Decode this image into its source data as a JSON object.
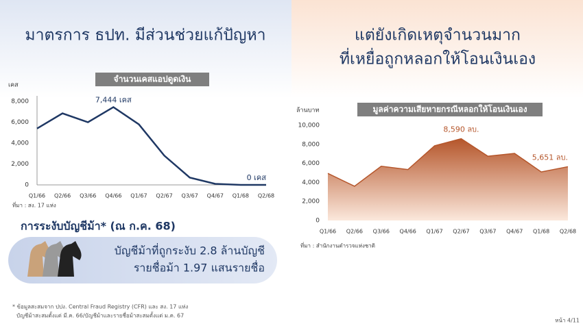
{
  "left_heading": "มาตรการ ธปท. มีส่วนช่วยแก้ปัญหา",
  "right_heading": [
    "แต่ยังเกิดเหตุจำนวนมาก",
    "ที่เหยื่อถูกหลอกให้โอนเงินเอง"
  ],
  "mule_box": {
    "title": "การระงับบัญชีม้า* (ณ ก.ค. 68)",
    "lines": [
      "บัญชีม้าที่ถูกระงับ  2.8 ล้านบัญชี",
      "รายชื่อม้า 1.97 แสนรายชื่อ"
    ]
  },
  "footnote": [
    "* ข้อมูลสะสมจาก ปปง. Central Fraud Registry (CFR) และ สง. 17 แห่ง",
    "บัญชีม้าสะสมตั้งแต่ มี.ค. 66/บัญชีม้าและรายชื่อม้าสะสมตั้งแต่ ม.ค. 67"
  ],
  "page_number": "หน้า 4/11",
  "chart_data": [
    {
      "type": "line",
      "title": "จำนวนเคสแอปดูดเงิน",
      "y_label": "เคส",
      "source": "ที่มา : สง. 17 แห่ง",
      "categories": [
        "Q1/66",
        "Q2/66",
        "Q3/66",
        "Q4/66",
        "Q1/67",
        "Q2/67",
        "Q3/67",
        "Q4/67",
        "Q1/68",
        "Q2/68"
      ],
      "values": [
        5400,
        6850,
        6000,
        7444,
        5800,
        2800,
        700,
        100,
        0,
        0
      ],
      "value_labels": [
        null,
        null,
        null,
        "7,444 เคส",
        null,
        null,
        null,
        null,
        null,
        "0 เคส"
      ],
      "color": "#1f3864",
      "ylim": [
        0,
        8000
      ],
      "yticks": [
        0,
        {
          "value": 2000,
          "label": "2,000"
        },
        {
          "value": 4000,
          "label": "4,000"
        },
        {
          "value": 6000,
          "label": "6,000"
        },
        {
          "value": 8000,
          "label": "8,000"
        }
      ],
      "grid": false,
      "axis_lines": true
    },
    {
      "type": "area",
      "title": "มูลค่าความเสียหายกรณีหลอกให้โอนเงินเอง",
      "y_label": "ล้านบาท",
      "source": "ที่มา : สำนักงานตำรวจแห่งชาติ",
      "categories": [
        "Q1/66",
        "Q2/66",
        "Q3/66",
        "Q4/66",
        "Q1/67",
        "Q2/67",
        "Q3/67",
        "Q4/67",
        "Q1/68",
        "Q2/68"
      ],
      "values": [
        4950,
        3600,
        5700,
        5350,
        7850,
        8590,
        6750,
        7050,
        5100,
        5651
      ],
      "value_labels": [
        null,
        null,
        null,
        null,
        null,
        "8,590 ลบ.",
        null,
        null,
        null,
        "5,651 ลบ."
      ],
      "color": "#b5562b",
      "ylim": [
        0,
        10000
      ],
      "yticks": [
        0,
        {
          "value": 2000,
          "label": "2,000"
        },
        {
          "value": 4000,
          "label": "4,000"
        },
        {
          "value": 6000,
          "label": "6,000"
        },
        {
          "value": 8000,
          "label": "8,000"
        },
        {
          "value": 10000,
          "label": "10,000"
        }
      ],
      "grid": false,
      "axis_lines": false
    }
  ]
}
